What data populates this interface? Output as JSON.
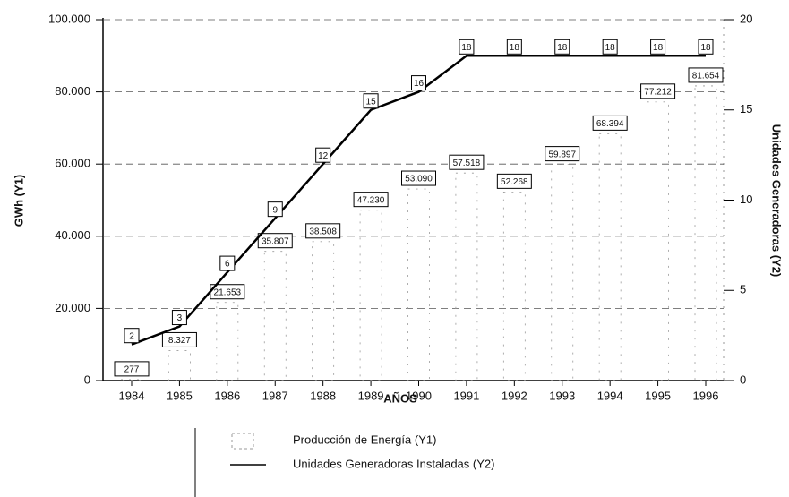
{
  "chart_data": {
    "type": "bar-line",
    "x_label": "AÑOS",
    "y_label": "GWh (Y1)",
    "y2_label": "Unidades Generadoras (Y2)",
    "categories": [
      "1984",
      "1985",
      "1986",
      "1987",
      "1988",
      "1989",
      "1990",
      "1991",
      "1992",
      "1993",
      "1994",
      "1995",
      "1996"
    ],
    "series": [
      {
        "name": "Producción de Energía (Y1)",
        "color": "#9a9a9a",
        "type": "bar",
        "values": [
          277,
          8327,
          21653,
          35807,
          38508,
          47230,
          53090,
          57518,
          52268,
          59897,
          68394,
          77212,
          81654
        ],
        "value_labels": [
          "277",
          "8.327",
          "21.653",
          "35.807",
          "38.508",
          "47.230",
          "53.090",
          "57.518",
          "52.268",
          "59.897",
          "68.394",
          "77.212",
          "81.654"
        ]
      },
      {
        "name": "Unidades Generadoras Instaladas (Y2)",
        "color": "#000000",
        "type": "line",
        "axis": "y2",
        "values": [
          2,
          3,
          6,
          9,
          12,
          15,
          16,
          18,
          18,
          18,
          18,
          18,
          18
        ]
      }
    ],
    "ylim": [
      0,
      100000
    ],
    "yticks": [
      0,
      {
        "value": 20000,
        "label": "20.000"
      },
      {
        "value": 40000,
        "label": "40.000"
      },
      {
        "value": 60000,
        "label": "60.000"
      },
      {
        "value": 80000,
        "label": "80.000"
      },
      {
        "value": 100000,
        "label": "100.000"
      }
    ],
    "y2lim": [
      0,
      20
    ],
    "y2ticks": [
      0,
      5,
      10,
      15,
      20
    ],
    "grid": true
  }
}
